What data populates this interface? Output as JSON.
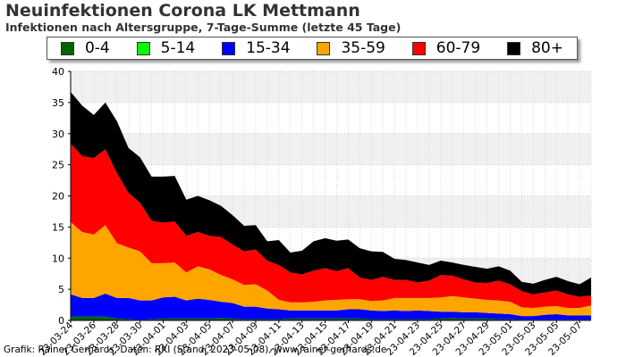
{
  "chart_data": {
    "type": "area",
    "stacked": true,
    "title": "Neuinfektionen Corona LK Mettmann",
    "subtitle": "Infektionen nach Altersgruppe, 7-Tage-Summe (letzte 45 Tage)",
    "xlabel": "",
    "ylabel": "",
    "ylim": [
      0,
      40
    ],
    "yticks": [
      0,
      5,
      10,
      15,
      20,
      25,
      30,
      35,
      40
    ],
    "grid": true,
    "legend_position": "top",
    "x": [
      "2023-03-24",
      "2023-03-25",
      "2023-03-26",
      "2023-03-27",
      "2023-03-28",
      "2023-03-29",
      "2023-03-30",
      "2023-03-31",
      "2023-04-01",
      "2023-04-02",
      "2023-04-03",
      "2023-04-04",
      "2023-04-05",
      "2023-04-06",
      "2023-04-07",
      "2023-04-08",
      "2023-04-09",
      "2023-04-10",
      "2023-04-11",
      "2023-04-12",
      "2023-04-13",
      "2023-04-14",
      "2023-04-15",
      "2023-04-16",
      "2023-04-17",
      "2023-04-18",
      "2023-04-19",
      "2023-04-20",
      "2023-04-21",
      "2023-04-22",
      "2023-04-23",
      "2023-04-24",
      "2023-04-25",
      "2023-04-26",
      "2023-04-27",
      "2023-04-28",
      "2023-04-29",
      "2023-04-30",
      "2023-05-01",
      "2023-05-02",
      "2023-05-03",
      "2023-05-04",
      "2023-05-05",
      "2023-05-06",
      "2023-05-07",
      "2023-05-08"
    ],
    "xtick_labels": [
      "23-03-24",
      "23-03-26",
      "23-03-28",
      "23-03-30",
      "23-04-01",
      "23-04-03",
      "23-04-05",
      "23-04-07",
      "23-04-09",
      "23-04-11",
      "23-04-13",
      "23-04-15",
      "23-04-17",
      "23-04-19",
      "23-04-21",
      "23-04-23",
      "23-04-25",
      "23-04-27",
      "23-04-29",
      "23-05-01",
      "23-05-03",
      "23-05-05",
      "23-05-07"
    ],
    "series": [
      {
        "name": "0-4",
        "color": "#006400",
        "values": [
          0.6,
          0.6,
          0.6,
          0.6,
          0.3,
          0.2,
          0.1,
          0.2,
          0.3,
          0.3,
          0.3,
          0.3,
          0.3,
          0.4,
          0.3,
          0.2,
          0.2,
          0.2,
          0.2,
          0.3,
          0.3,
          0.3,
          0.3,
          0.3,
          0.3,
          0.3,
          0.2,
          0.2,
          0.2,
          0.2,
          0.2,
          0.2,
          0.3,
          0.4,
          0.3,
          0.3,
          0.3,
          0.2,
          0.2,
          0.1,
          0.1,
          0.1,
          0.1,
          0.1,
          0.1,
          0.1
        ]
      },
      {
        "name": "5-14",
        "color": "#00ff00",
        "values": [
          0,
          0,
          0,
          0,
          0,
          0,
          0,
          0,
          0,
          0,
          0,
          0,
          0,
          0,
          0,
          0,
          0,
          0,
          0,
          0,
          0,
          0,
          0,
          0,
          0,
          0,
          0,
          0,
          0,
          0,
          0,
          0,
          0,
          0,
          0,
          0,
          0,
          0,
          0,
          0,
          0,
          0,
          0,
          0,
          0,
          0
        ]
      },
      {
        "name": "15-34",
        "color": "#0000ff",
        "values": [
          3.6,
          3.0,
          3.0,
          3.7,
          3.3,
          3.4,
          3.1,
          3.0,
          3.4,
          3.5,
          2.9,
          3.2,
          3.0,
          2.6,
          2.5,
          2.0,
          2.0,
          1.7,
          1.6,
          1.3,
          1.3,
          1.3,
          1.3,
          1.3,
          1.5,
          1.5,
          1.4,
          1.3,
          1.4,
          1.3,
          1.4,
          1.3,
          1.1,
          1.0,
          1.0,
          1.0,
          0.9,
          0.9,
          0.8,
          0.6,
          0.6,
          0.8,
          0.9,
          0.7,
          0.7,
          0.7
        ]
      },
      {
        "name": "35-59",
        "color": "#ffa500",
        "values": [
          11.6,
          10.6,
          10.2,
          11.0,
          8.8,
          8.1,
          7.9,
          6.0,
          5.5,
          5.5,
          4.5,
          5.2,
          4.9,
          4.3,
          3.8,
          3.5,
          3.6,
          2.9,
          1.5,
          1.3,
          1.3,
          1.4,
          1.6,
          1.7,
          1.6,
          1.6,
          1.5,
          1.7,
          2.0,
          2.1,
          2.0,
          2.1,
          2.3,
          2.5,
          2.4,
          2.2,
          2.1,
          2.1,
          2.0,
          1.4,
          1.3,
          1.3,
          1.3,
          1.2,
          1.2,
          1.6
        ]
      },
      {
        "name": "60-79",
        "color": "#ff0000",
        "values": [
          12.6,
          12.2,
          12.3,
          12.2,
          11.3,
          8.8,
          7.8,
          6.8,
          6.5,
          6.6,
          5.9,
          5.5,
          5.4,
          6.1,
          5.6,
          5.4,
          5.6,
          4.8,
          5.6,
          4.8,
          4.5,
          5.0,
          5.2,
          4.6,
          5.0,
          3.5,
          3.4,
          3.8,
          2.9,
          2.9,
          2.5,
          2.8,
          3.6,
          3.3,
          2.9,
          2.6,
          2.7,
          3.2,
          2.8,
          2.6,
          2.2,
          2.3,
          2.5,
          2.2,
          1.8,
          1.6
        ]
      },
      {
        "name": "80+",
        "color": "#000000",
        "values": [
          8.3,
          8.1,
          6.9,
          7.5,
          8.3,
          7.2,
          7.3,
          7.1,
          7.4,
          7.3,
          5.8,
          5.8,
          5.7,
          5.0,
          4.7,
          4.1,
          3.9,
          3.1,
          4.0,
          3.2,
          3.8,
          4.7,
          4.8,
          4.9,
          4.6,
          4.7,
          4.6,
          4.0,
          3.4,
          3.2,
          3.2,
          2.5,
          2.3,
          2.1,
          2.3,
          2.5,
          2.3,
          2.3,
          2.2,
          1.5,
          1.7,
          2.0,
          2.2,
          2.1,
          2.0,
          2.9
        ]
      }
    ]
  },
  "legend": {
    "items": [
      {
        "label": "0-4",
        "color": "#006400"
      },
      {
        "label": "5-14",
        "color": "#00ff00"
      },
      {
        "label": "15-34",
        "color": "#0000ff"
      },
      {
        "label": "35-59",
        "color": "#ffa500"
      },
      {
        "label": "60-79",
        "color": "#ff0000"
      },
      {
        "label": "80+",
        "color": "#000000"
      }
    ]
  },
  "credit": "Grafik: Rainer Gerhards, Daten: RKI (Stand: 2023-05-08), www.rainer-gerhards.de"
}
